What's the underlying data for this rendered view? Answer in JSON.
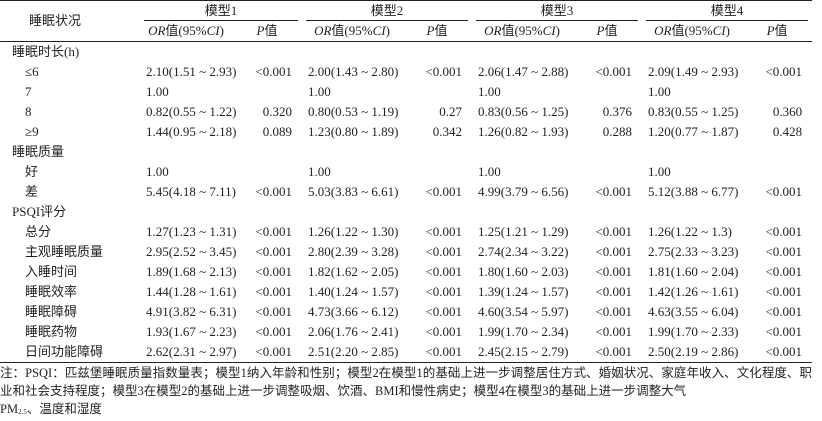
{
  "table": {
    "header": {
      "row_label": "睡眠状况",
      "models": [
        "模型1",
        "模型2",
        "模型3",
        "模型4"
      ],
      "or_label_italic": "OR",
      "or_label_rest": "值(95%",
      "ci_italic": "CI",
      "ci_close": ")",
      "p_italic": "P",
      "p_rest": "值"
    },
    "rows": [
      {
        "label": "睡眠时长(h)",
        "group": true
      },
      {
        "label": "≤6",
        "cells": [
          [
            "2.10(1.51 ~ 2.93)",
            "<0.001"
          ],
          [
            "2.00(1.43 ~ 2.80)",
            "<0.001"
          ],
          [
            "2.06(1.47 ~ 2.88)",
            "<0.001"
          ],
          [
            "2.09(1.49 ~ 2.93)",
            "<0.001"
          ]
        ]
      },
      {
        "label": "7",
        "cells": [
          [
            "1.00",
            ""
          ],
          [
            "1.00",
            ""
          ],
          [
            "1.00",
            ""
          ],
          [
            "1.00",
            ""
          ]
        ]
      },
      {
        "label": "8",
        "cells": [
          [
            "0.82(0.55 ~ 1.22)",
            "0.320"
          ],
          [
            "0.80(0.53 ~ 1.19)",
            "0.27"
          ],
          [
            "0.83(0.56 ~ 1.25)",
            "0.376"
          ],
          [
            "0.83(0.55 ~ 1.25)",
            "0.360"
          ]
        ]
      },
      {
        "label": "≥9",
        "cells": [
          [
            "1.44(0.95 ~ 2.18)",
            "0.089"
          ],
          [
            "1.23(0.80 ~ 1.89)",
            "0.342"
          ],
          [
            "1.26(0.82 ~ 1.93)",
            "0.288"
          ],
          [
            "1.20(0.77 ~ 1.87)",
            "0.428"
          ]
        ]
      },
      {
        "label": "睡眠质量",
        "group": true
      },
      {
        "label": "好",
        "cells": [
          [
            "1.00",
            ""
          ],
          [
            "1.00",
            ""
          ],
          [
            "1.00",
            ""
          ],
          [
            "1.00",
            ""
          ]
        ]
      },
      {
        "label": "差",
        "cells": [
          [
            "5.45(4.18 ~ 7.11)",
            "<0.001"
          ],
          [
            "5.03(3.83 ~ 6.61)",
            "<0.001"
          ],
          [
            "4.99(3.79 ~ 6.56)",
            "<0.001"
          ],
          [
            "5.12(3.88 ~ 6.77)",
            "<0.001"
          ]
        ]
      },
      {
        "label": "PSQI评分",
        "group": true
      },
      {
        "label": "总分",
        "cells": [
          [
            "1.27(1.23 ~ 1.31)",
            "<0.001"
          ],
          [
            "1.26(1.22 ~ 1.30)",
            "<0.001"
          ],
          [
            "1.25(1.21 ~ 1.29)",
            "<0.001"
          ],
          [
            "1.26(1.22 ~ 1.3)",
            "<0.001"
          ]
        ]
      },
      {
        "label": "主观睡眠质量",
        "cells": [
          [
            "2.95(2.52 ~ 3.45)",
            "<0.001"
          ],
          [
            "2.80(2.39 ~ 3.28)",
            "<0.001"
          ],
          [
            "2.74(2.34 ~ 3.22)",
            "<0.001"
          ],
          [
            "2.75(2.33 ~ 3.23)",
            "<0.001"
          ]
        ]
      },
      {
        "label": "入睡时间",
        "cells": [
          [
            "1.89(1.68 ~ 2.13)",
            "<0.001"
          ],
          [
            "1.82(1.62 ~ 2.05)",
            "<0.001"
          ],
          [
            "1.80(1.60 ~ 2.03)",
            "<0.001"
          ],
          [
            "1.81(1.60 ~ 2.04)",
            "<0.001"
          ]
        ]
      },
      {
        "label": "睡眠效率",
        "cells": [
          [
            "1.44(1.28 ~ 1.61)",
            "<0.001"
          ],
          [
            "1.40(1.24 ~ 1.57)",
            "<0.001"
          ],
          [
            "1.39(1.24 ~ 1.57)",
            "<0.001"
          ],
          [
            "1.42(1.26 ~ 1.61)",
            "<0.001"
          ]
        ]
      },
      {
        "label": "睡眠障碍",
        "cells": [
          [
            "4.91(3.82 ~ 6.31)",
            "<0.001"
          ],
          [
            "4.73(3.66 ~ 6.12)",
            "<0.001"
          ],
          [
            "4.60(3.54 ~ 5.97)",
            "<0.001"
          ],
          [
            "4.63(3.55 ~ 6.04)",
            "<0.001"
          ]
        ]
      },
      {
        "label": "睡眠药物",
        "cells": [
          [
            "1.93(1.67 ~ 2.23)",
            "<0.001"
          ],
          [
            "2.06(1.76 ~ 2.41)",
            "<0.001"
          ],
          [
            "1.99(1.70 ~ 2.34)",
            "<0.001"
          ],
          [
            "1.99(1.70 ~ 2.33)",
            "<0.001"
          ]
        ]
      },
      {
        "label": "日间功能障碍",
        "cells": [
          [
            "2.62(2.31 ~ 2.97)",
            "<0.001"
          ],
          [
            "2.51(2.20 ~ 2.85)",
            "<0.001"
          ],
          [
            "2.45(2.15 ~ 2.79)",
            "<0.001"
          ],
          [
            "2.50(2.19 ~ 2.86)",
            "<0.001"
          ]
        ]
      }
    ]
  },
  "note": {
    "text": "注：PSQI：匹兹堡睡眠质量指数量表；模型1纳入年龄和性别；模型2在模型1的基础上进一步调整居住方式、婚姻状况、家庭年收入、文化程度、职业和社会支持程度；模型3在模型2的基础上进一步调整吸烟、饮酒、BMI和慢性病史；模型4在模型3的基础上进一步调整大气",
    "pm": "PM",
    "pm_sub": "2.5",
    "tail": "、温度和湿度"
  }
}
